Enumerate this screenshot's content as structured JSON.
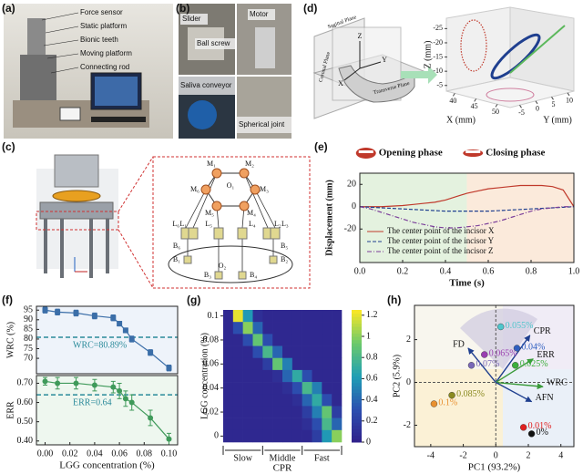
{
  "panel_labels": [
    "(a)",
    "(b)",
    "(c)",
    "(d)",
    "(e)",
    "(f)",
    "(g)",
    "(h)"
  ],
  "photo_a": {
    "labels": [
      "Force sensor",
      "Static platform",
      "Bionic teeth",
      "Moving platform",
      "Connecting rod"
    ]
  },
  "photo_b": {
    "labels": [
      "Slider",
      "Ball screw",
      "Motor",
      "Saliva conveyor",
      "Spherical joint"
    ]
  },
  "diagram_c": {
    "joints": [
      "M₁",
      "M₂",
      "M₃",
      "M₄",
      "M₅",
      "M₆"
    ],
    "links": [
      "L₁",
      "L₂",
      "L₃",
      "L₄",
      "L₅",
      "L₆"
    ],
    "bases": [
      "B₁",
      "B₂",
      "B₃",
      "B₄",
      "B₅",
      "B₆"
    ],
    "origins": [
      "O₁",
      "O₂"
    ]
  },
  "diagram_d": {
    "planes": [
      "Coronal Plane",
      "Transverse Plane",
      "Sagittal Plane"
    ],
    "axes": [
      "Z",
      "Y",
      "X"
    ]
  },
  "chart_data": [
    {
      "type": "line3d",
      "xlabel": "X (mm)",
      "ylabel": "Y (mm)",
      "zlabel": "Z (mm)",
      "xlim": [
        38,
        53
      ],
      "xticks": [
        40,
        45,
        50
      ],
      "ylim": [
        -8,
        12
      ],
      "yticks": [
        -5,
        0,
        5,
        10
      ],
      "zlim": [
        -28,
        -3
      ],
      "zticks": [
        -25,
        -20,
        -15,
        -10,
        -5
      ]
    },
    {
      "type": "line",
      "xlabel": "Time (s)",
      "ylabel": "Displacement (mm)",
      "phases": [
        {
          "label": "Opening phase",
          "range": [
            0,
            0.5
          ],
          "color": "#e4f2df"
        },
        {
          "label": "Closing phase",
          "range": [
            0.5,
            1
          ],
          "color": "#fbeadb"
        }
      ],
      "x": [
        0,
        0.05,
        0.1,
        0.15,
        0.2,
        0.25,
        0.3,
        0.35,
        0.4,
        0.45,
        0.5,
        0.55,
        0.6,
        0.65,
        0.7,
        0.75,
        0.8,
        0.85,
        0.9,
        0.95,
        1
      ],
      "xlim": [
        0,
        1
      ],
      "xticks": [
        {
          "value": 0,
          "label": "0.0"
        },
        0.2,
        0.4,
        0.6,
        0.8,
        {
          "value": 1,
          "label": "1.0"
        }
      ],
      "ylim": [
        -50,
        30
      ],
      "yticks": [
        -20,
        0,
        20
      ],
      "series": [
        {
          "name": "The center point of the incisor X",
          "color": "#c0392b",
          "style": "solid",
          "values": [
            0,
            0,
            0,
            0.5,
            1,
            2,
            3,
            4,
            6,
            9,
            12,
            14,
            16,
            17,
            18,
            19,
            19,
            19,
            18,
            15,
            0
          ]
        },
        {
          "name": "The center point of the incisor Y",
          "color": "#1f3f8f",
          "style": "dashed",
          "values": [
            0,
            -0.5,
            -1,
            -1.5,
            -2,
            -2.5,
            -3,
            -3.5,
            -4,
            -4,
            -4,
            -4,
            -4,
            -3.5,
            -3,
            -2.5,
            -2,
            -1.5,
            -1,
            -0.5,
            0
          ]
        },
        {
          "name": "The center point of the incisor Z",
          "color": "#7b3f9a",
          "style": "dashdot",
          "values": [
            0,
            -2,
            -5,
            -8,
            -11,
            -14,
            -16,
            -18,
            -19,
            -19,
            -18,
            -17,
            -15,
            -13,
            -10,
            -7,
            -4,
            -2,
            -1,
            0,
            0
          ]
        }
      ]
    },
    {
      "type": "errorbar",
      "ylabel": "WRC (%)",
      "x": [
        0,
        0.01,
        0.025,
        0.04,
        0.055,
        0.06,
        0.065,
        0.07,
        0.085,
        0.1
      ],
      "values": [
        95,
        94,
        93.5,
        92,
        91,
        88,
        84.5,
        80,
        73,
        65
      ],
      "errors": [
        1.5,
        1.5,
        1.5,
        1.5,
        1.5,
        1.2,
        1.2,
        1.5,
        1.5,
        1.5
      ],
      "color": "#3b6ea8",
      "xlim": [
        -0.007,
        0.107
      ],
      "ylim": [
        62,
        97
      ],
      "yticks": [
        70,
        75,
        80,
        85,
        90,
        95
      ],
      "reference": {
        "value": 80.89,
        "label": "WRC=80.89%",
        "color": "#2a8a9a"
      }
    },
    {
      "type": "errorbar",
      "ylabel": "ERR",
      "xlabel": "LGG concentration (%)",
      "x": [
        0,
        0.01,
        0.025,
        0.04,
        0.055,
        0.06,
        0.065,
        0.07,
        0.085,
        0.1
      ],
      "values": [
        0.71,
        0.7,
        0.7,
        0.69,
        0.68,
        0.66,
        0.62,
        0.6,
        0.52,
        0.41
      ],
      "errors": [
        0.02,
        0.03,
        0.03,
        0.03,
        0.03,
        0.04,
        0.04,
        0.04,
        0.04,
        0.03
      ],
      "color": "#3f9a5a",
      "xlim": [
        -0.007,
        0.107
      ],
      "xticks": [
        {
          "value": 0,
          "label": "0.00"
        },
        0.02,
        0.04,
        0.06,
        0.08,
        {
          "value": 0.1,
          "label": "0.10"
        }
      ],
      "ylim": [
        0.38,
        0.74
      ],
      "yticks": [
        {
          "value": 0.4,
          "label": "0.40"
        },
        {
          "value": 0.5,
          "label": "0.50"
        },
        {
          "value": 0.6,
          "label": "0.60"
        },
        {
          "value": 0.7,
          "label": "0.70"
        }
      ],
      "reference": {
        "value": 0.64,
        "label": "ERR=0.64",
        "color": "#2a8a9a"
      }
    },
    {
      "type": "heatmap",
      "ylabel": "LGG concentration (%)",
      "xlabel": "CPR",
      "x_groups": [
        "Slow",
        "Middle",
        "Fast"
      ],
      "y": [
        0.1,
        0.09,
        0.08,
        0.07,
        0.06,
        0.05,
        0.04,
        0.03,
        0.02,
        0.01,
        0
      ],
      "ylim": [
        -0.005,
        0.105
      ],
      "yticks": [
        0,
        0.02,
        0.04,
        0.06,
        0.08,
        0.1
      ],
      "z": [
        [
          0.05,
          1.2,
          0.6,
          0.1,
          0.05,
          0.05,
          0.05,
          0.05,
          0.05,
          0.05,
          0.05,
          0.05
        ],
        [
          0.05,
          0.3,
          1,
          0.4,
          0.05,
          0.05,
          0.05,
          0.05,
          0.05,
          0.05,
          0.05,
          0.05
        ],
        [
          0.05,
          0.05,
          0.3,
          0.9,
          0.3,
          0.05,
          0.05,
          0.05,
          0.05,
          0.05,
          0.05,
          0.05
        ],
        [
          0.05,
          0.05,
          0.05,
          0.3,
          0.8,
          0.4,
          0.05,
          0.05,
          0.05,
          0.05,
          0.05,
          0.05
        ],
        [
          0.05,
          0.05,
          0.05,
          0.05,
          0.2,
          0.9,
          0.5,
          0.05,
          0.05,
          0.05,
          0.05,
          0.05
        ],
        [
          0.05,
          0.05,
          0.05,
          0.05,
          0.05,
          0.1,
          0.4,
          0.7,
          0.3,
          0.05,
          0.05,
          0.05
        ],
        [
          0.05,
          0.05,
          0.05,
          0.05,
          0.05,
          0.05,
          0.1,
          0.3,
          0.8,
          0.5,
          0.05,
          0.05
        ],
        [
          0.05,
          0.05,
          0.05,
          0.05,
          0.05,
          0.05,
          0.05,
          0.1,
          0.4,
          0.7,
          0.3,
          0.05
        ],
        [
          0.05,
          0.05,
          0.05,
          0.05,
          0.05,
          0.05,
          0.05,
          0.05,
          0.2,
          0.5,
          0.9,
          0.2
        ],
        [
          0.05,
          0.05,
          0.05,
          0.05,
          0.05,
          0.05,
          0.05,
          0.05,
          0.1,
          0.3,
          0.8,
          0.4
        ],
        [
          0.05,
          0.05,
          0.05,
          0.05,
          0.05,
          0.05,
          0.05,
          0.05,
          0.05,
          0.2,
          0.6,
          1
        ]
      ],
      "zlim": [
        0,
        1.25
      ],
      "zticks": [
        0,
        0.2,
        0.4,
        0.6,
        0.8,
        1,
        1.2
      ],
      "colormap": [
        "#30208a",
        "#2c4fb0",
        "#1f9fb5",
        "#6cc96a",
        "#fde725"
      ]
    },
    {
      "type": "biplot",
      "xlabel": "PC1 (93.2%)",
      "ylabel": "PC2 (5.9%)",
      "xlim": [
        -5,
        4.8
      ],
      "ylim": [
        -3,
        3.6
      ],
      "xticks": [
        -4,
        -2,
        0,
        2,
        4
      ],
      "yticks": [
        -2,
        0,
        2
      ],
      "points": [
        {
          "label": "0.055%",
          "x": 0.3,
          "y": 2.6,
          "color": "#4fc6cc"
        },
        {
          "label": "0.04%",
          "x": 1.3,
          "y": 1.6,
          "color": "#2f5fc0"
        },
        {
          "label": "0.065%",
          "x": -0.7,
          "y": 1.3,
          "color": "#9a3fb0"
        },
        {
          "label": "0.07%",
          "x": -1.5,
          "y": 0.8,
          "color": "#7a68b8"
        },
        {
          "label": "0.025%",
          "x": 1.2,
          "y": 0.8,
          "color": "#3cae3c"
        },
        {
          "label": "0.085%",
          "x": -2.7,
          "y": -0.6,
          "color": "#8a8a20"
        },
        {
          "label": "0.1%",
          "x": -3.8,
          "y": -1,
          "color": "#e89030"
        },
        {
          "label": "0.01%",
          "x": 1.7,
          "y": -2.1,
          "color": "#e02020"
        },
        {
          "label": "0%",
          "x": 2.2,
          "y": -2.4,
          "color": "#111111"
        }
      ],
      "vectors": [
        {
          "label": "FD",
          "x": -1.7,
          "y": 1.6
        },
        {
          "label": "CPR",
          "x": 2.1,
          "y": 2.2
        },
        {
          "label": "ERR",
          "x": 2.3,
          "y": 1.1
        },
        {
          "label": "WRC",
          "x": 2.9,
          "y": -0.2
        },
        {
          "label": "AFN",
          "x": 2.2,
          "y": -0.9
        }
      ]
    }
  ]
}
